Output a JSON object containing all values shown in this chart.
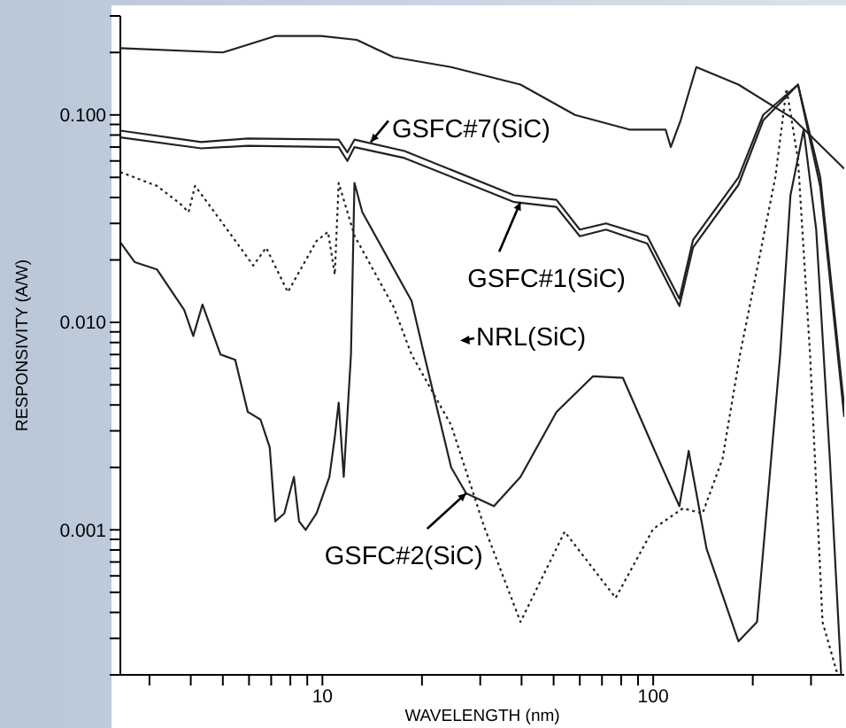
{
  "chart_data": {
    "type": "line",
    "xlabel": "WAVELENGTH (nm)",
    "ylabel": "RESPONSIVITY (A/W)",
    "log": "xy",
    "xlim": [
      2.45,
      378
    ],
    "ylim": [
      0.0002,
      0.3
    ],
    "xticks": [
      {
        "value": 3,
        "label": null
      },
      {
        "value": 4,
        "label": null
      },
      {
        "value": 5,
        "label": null
      },
      {
        "value": 6,
        "label": null
      },
      {
        "value": 7,
        "label": null
      },
      {
        "value": 8,
        "label": null
      },
      {
        "value": 9,
        "label": null
      },
      10,
      {
        "value": 20,
        "label": null
      },
      {
        "value": 30,
        "label": null
      },
      {
        "value": 40,
        "label": null
      },
      {
        "value": 50,
        "label": null
      },
      {
        "value": 60,
        "label": null
      },
      {
        "value": 70,
        "label": null
      },
      {
        "value": 80,
        "label": null
      },
      {
        "value": 90,
        "label": null
      },
      100,
      {
        "value": 200,
        "label": null
      },
      {
        "value": 300,
        "label": null
      }
    ],
    "yticks": [
      {
        "value": 0.0002,
        "label": null
      },
      {
        "value": 0.0003,
        "label": null
      },
      {
        "value": 0.0004,
        "label": null
      },
      {
        "value": 0.0005,
        "label": null
      },
      {
        "value": 0.0006,
        "label": null
      },
      {
        "value": 0.0007,
        "label": null
      },
      {
        "value": 0.0008,
        "label": null
      },
      {
        "value": 0.0009,
        "label": null
      },
      0.001,
      {
        "value": 0.002,
        "label": null
      },
      {
        "value": 0.003,
        "label": null
      },
      {
        "value": 0.004,
        "label": null
      },
      {
        "value": 0.005,
        "label": null
      },
      {
        "value": 0.006,
        "label": null
      },
      {
        "value": 0.007,
        "label": null
      },
      {
        "value": 0.008,
        "label": null
      },
      {
        "value": 0.009,
        "label": null
      },
      {
        "value": 0.01,
        "label": "0.010"
      },
      {
        "value": 0.02,
        "label": null
      },
      {
        "value": 0.03,
        "label": null
      },
      {
        "value": 0.04,
        "label": null
      },
      {
        "value": 0.05,
        "label": null
      },
      {
        "value": 0.06,
        "label": null
      },
      {
        "value": 0.07,
        "label": null
      },
      {
        "value": 0.08,
        "label": null
      },
      {
        "value": 0.09,
        "label": null
      },
      {
        "value": 0.1,
        "label": "0.100"
      },
      {
        "value": 0.2,
        "label": null
      },
      {
        "value": 0.3,
        "label": null
      }
    ],
    "series": [
      {
        "type": "line",
        "color": "#222222",
        "line_style": "solid",
        "x": [
          2.45,
          5.0,
          7.2,
          9.9,
          12.7,
          16.4,
          24.5,
          39.7,
          58,
          84.7,
          109,
          113,
          121,
          135,
          181,
          265,
          378
        ],
        "values": [
          0.21,
          0.2,
          0.24,
          0.24,
          0.23,
          0.19,
          0.17,
          0.14,
          0.1,
          0.085,
          0.085,
          0.07,
          0.094,
          0.17,
          0.14,
          0.096,
          0.055
        ]
      },
      {
        "type": "line",
        "color": "#222222",
        "line_style": "solid",
        "x": [
          2.45,
          4.3,
          5.95,
          11.2,
          11.9,
          12.5,
          17.7,
          38,
          51,
          60,
          72,
          96,
          120,
          132,
          181,
          215,
          274,
          320,
          378
        ],
        "values": [
          0.084,
          0.074,
          0.077,
          0.076,
          0.066,
          0.076,
          0.067,
          0.041,
          0.039,
          0.028,
          0.03,
          0.026,
          0.013,
          0.025,
          0.05,
          0.1,
          0.14,
          0.05,
          0.0039
        ]
      },
      {
        "type": "line",
        "color": "#222222",
        "line_style": "solid",
        "x": [
          2.45,
          4.3,
          5.95,
          11.2,
          11.9,
          12.5,
          17.7,
          38,
          51,
          60,
          72,
          96,
          120,
          132,
          181,
          215,
          274,
          320,
          378
        ],
        "values": [
          0.078,
          0.069,
          0.071,
          0.07,
          0.06,
          0.07,
          0.062,
          0.038,
          0.036,
          0.026,
          0.028,
          0.024,
          0.012,
          0.023,
          0.046,
          0.094,
          0.14,
          0.045,
          0.0035
        ]
      },
      {
        "type": "line",
        "color": "#222222",
        "line_style": "dotted",
        "x": [
          2.45,
          3.16,
          3.71,
          3.94,
          4.12,
          4.81,
          6.18,
          6.76,
          7.86,
          8.9,
          9.6,
          10.4,
          10.9,
          11.2,
          12.5,
          16.4,
          18.6,
          24.5,
          30.8,
          39.7,
          54,
          77,
          100,
          123,
          141,
          162,
          183,
          234,
          253,
          274,
          298,
          325,
          361
        ],
        "values": [
          0.053,
          0.0455,
          0.0374,
          0.034,
          0.0455,
          0.0326,
          0.0188,
          0.0229,
          0.014,
          0.0199,
          0.0247,
          0.0273,
          0.017,
          0.047,
          0.0262,
          0.0119,
          0.007,
          0.0032,
          0.00104,
          0.00036,
          0.00098,
          0.00047,
          0.00101,
          0.00127,
          0.0012,
          0.0022,
          0.007,
          0.05,
          0.134,
          0.061,
          0.007,
          0.00036,
          0.0002
        ]
      },
      {
        "type": "line",
        "color": "#222222",
        "line_style": "solid",
        "x": [
          2.45,
          2.71,
          3.16,
          3.82,
          4.07,
          4.34,
          4.92,
          5.45,
          5.95,
          6.5,
          6.93,
          7.2,
          7.67,
          8.2,
          8.5,
          8.9,
          9.6,
          10.5,
          10.9,
          11.2,
          11.6,
          12.2,
          12.5,
          13.2,
          18.6,
          20.3,
          24.5,
          27.2,
          33,
          39.7,
          51,
          65.8,
          81,
          100,
          120,
          128,
          145,
          181,
          206,
          242,
          260,
          285,
          311,
          342,
          370
        ],
        "values": [
          0.0243,
          0.0195,
          0.018,
          0.0115,
          0.0086,
          0.0122,
          0.007,
          0.0066,
          0.0037,
          0.0034,
          0.0025,
          0.0011,
          0.0012,
          0.0018,
          0.0011,
          0.001,
          0.0012,
          0.0018,
          0.0028,
          0.0041,
          0.0018,
          0.007,
          0.047,
          0.034,
          0.0127,
          0.007,
          0.002,
          0.0015,
          0.0013,
          0.0018,
          0.0037,
          0.0055,
          0.0054,
          0.0025,
          0.0013,
          0.0024,
          0.00081,
          0.00029,
          0.00036,
          0.007,
          0.041,
          0.085,
          0.028,
          0.0022,
          0.0002
        ]
      }
    ],
    "annotations": [
      {
        "text": "GSFC#7(SiC)",
        "x": 14,
        "y": 0.074
      },
      {
        "text": "GSFC#1(SiC)",
        "x": 39.7,
        "y": 0.038
      },
      "NRL(SiC)",
      {
        "text": "GSFC#2(SiC)",
        "x": 27.2,
        "y": 0.0015
      }
    ]
  }
}
